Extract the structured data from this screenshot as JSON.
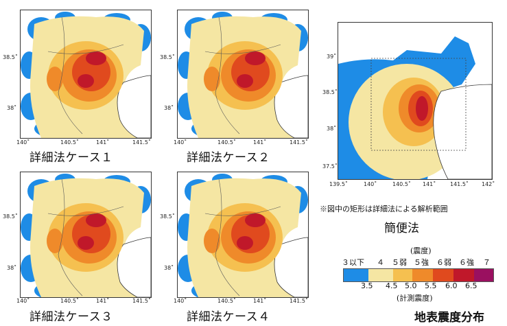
{
  "maps": [
    {
      "caption": "詳細法ケース１",
      "x_ticks": [
        "140˚",
        "140.5˚",
        "141˚",
        "141.5˚"
      ],
      "y_ticks": [
        "38.5˚",
        "38˚"
      ]
    },
    {
      "caption": "詳細法ケース２",
      "x_ticks": [
        "140˚",
        "140.5˚",
        "141˚",
        "141.5˚"
      ],
      "y_ticks": [
        "38.5˚",
        "38˚"
      ]
    },
    {
      "caption": "詳細法ケース３",
      "x_ticks": [
        "140˚",
        "140.5˚",
        "141˚",
        "141.5˚"
      ],
      "y_ticks": [
        "38.5˚",
        "38˚"
      ]
    },
    {
      "caption": "詳細法ケース４",
      "x_ticks": [
        "140˚",
        "140.5˚",
        "141˚",
        "141.5˚"
      ],
      "y_ticks": [
        "38.5˚",
        "38˚"
      ]
    }
  ],
  "simple_map": {
    "x_ticks": [
      "139.5˚",
      "140˚",
      "140.5˚",
      "141˚",
      "141.5˚",
      "142˚"
    ],
    "y_ticks": [
      "39˚",
      "38.5˚",
      "38˚",
      "37.5˚"
    ],
    "note": "※図中の矩形は詳細法による解析範囲",
    "title": "簡便法"
  },
  "legend": {
    "unit_top": "(震度)",
    "intensity_labels": [
      "３以下",
      "４",
      "５弱",
      "５強",
      "６弱",
      "６強",
      "７"
    ],
    "values": [
      "3.5",
      "4.5",
      "5.0",
      "5.5",
      "6.0",
      "6.5"
    ],
    "unit_bottom": "(計測震度)",
    "colors": [
      "#1e8ce6",
      "#f5e6a3",
      "#f5c050",
      "#ef8a2a",
      "#e04a1e",
      "#c0182a",
      "#9a1060"
    ]
  },
  "figure_title": "地表震度分布"
}
